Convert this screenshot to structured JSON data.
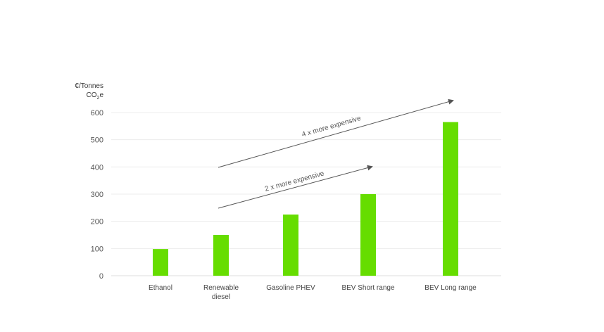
{
  "chart_data": {
    "type": "bar",
    "ylabel_line1": "€/Tonnes",
    "ylabel_line2_main": "CO",
    "ylabel_line2_sub": "2",
    "ylabel_line2_tail": "e",
    "ylim": [
      0,
      600
    ],
    "yticks": [
      "0",
      "100",
      "200",
      "300",
      "400",
      "500",
      "600"
    ],
    "grid": true,
    "categories": [
      [
        "Ethanol"
      ],
      [
        "Renewable",
        "diesel"
      ],
      [
        "Gasoline PHEV"
      ],
      [
        "BEV Short range"
      ],
      [
        "BEV Long range"
      ]
    ],
    "values": [
      98,
      150,
      225,
      300,
      565
    ],
    "bar_color": "#66dd00",
    "annotations": [
      {
        "text": "2 x more expensive",
        "from_category": 1,
        "to_category": 3
      },
      {
        "text": "4 x more expensive",
        "from_category": 1,
        "to_category": 4
      }
    ]
  }
}
